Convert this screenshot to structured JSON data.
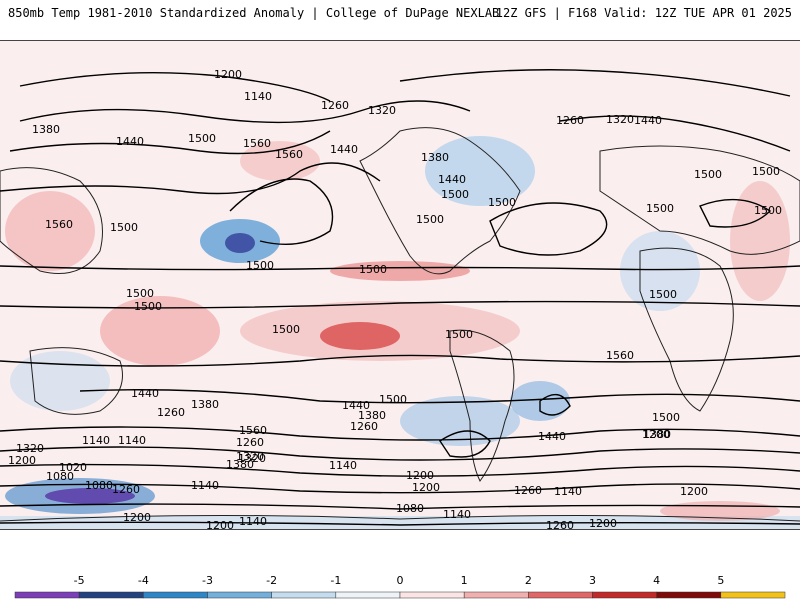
{
  "header": {
    "left_title": "850mb Temp 1981-2010 Standardized Anomaly | College of DuPage NEXLAB",
    "right_title": "12Z GFS | F168 Valid: 12Z TUE APR 01 2025"
  },
  "map": {
    "contour_labels": [
      "1200",
      "1140",
      "1260",
      "1320",
      "1380",
      "1440",
      "1500",
      "1560",
      "1380",
      "1260",
      "1320",
      "1440",
      "1560",
      "1440",
      "1500",
      "1500",
      "1440",
      "1500",
      "1500",
      "1560",
      "1500",
      "1500",
      "1500",
      "1500",
      "1500",
      "1500",
      "1500",
      "1500",
      "1500",
      "1500",
      "1500",
      "1560",
      "1380",
      "1440",
      "1260",
      "1500",
      "1380",
      "1440",
      "1260",
      "1560",
      "1320",
      "1200",
      "1140",
      "1500",
      "1380",
      "1440",
      "1200",
      "1320",
      "1140",
      "1200",
      "1260",
      "1320",
      "1380",
      "1140",
      "1080",
      "1020",
      "1080",
      "1140",
      "1260",
      "1200",
      "1140",
      "1260",
      "1200",
      "1080",
      "1140",
      "1200",
      "1140",
      "1200",
      "1260",
      "1200"
    ]
  },
  "colorbar": {
    "tick_labels": [
      "-5",
      "-4",
      "-3",
      "-2",
      "-1",
      "0",
      "1",
      "2",
      "3",
      "4",
      "5"
    ],
    "colors": [
      "#7b3fb8",
      "#23427e",
      "#2f86c6",
      "#74aedb",
      "#c5dcee",
      "#eef3f8",
      "#fbe4e4",
      "#f0b0b0",
      "#e06767",
      "#c22a2a",
      "#7e0a0a",
      "#f3c21a"
    ]
  }
}
